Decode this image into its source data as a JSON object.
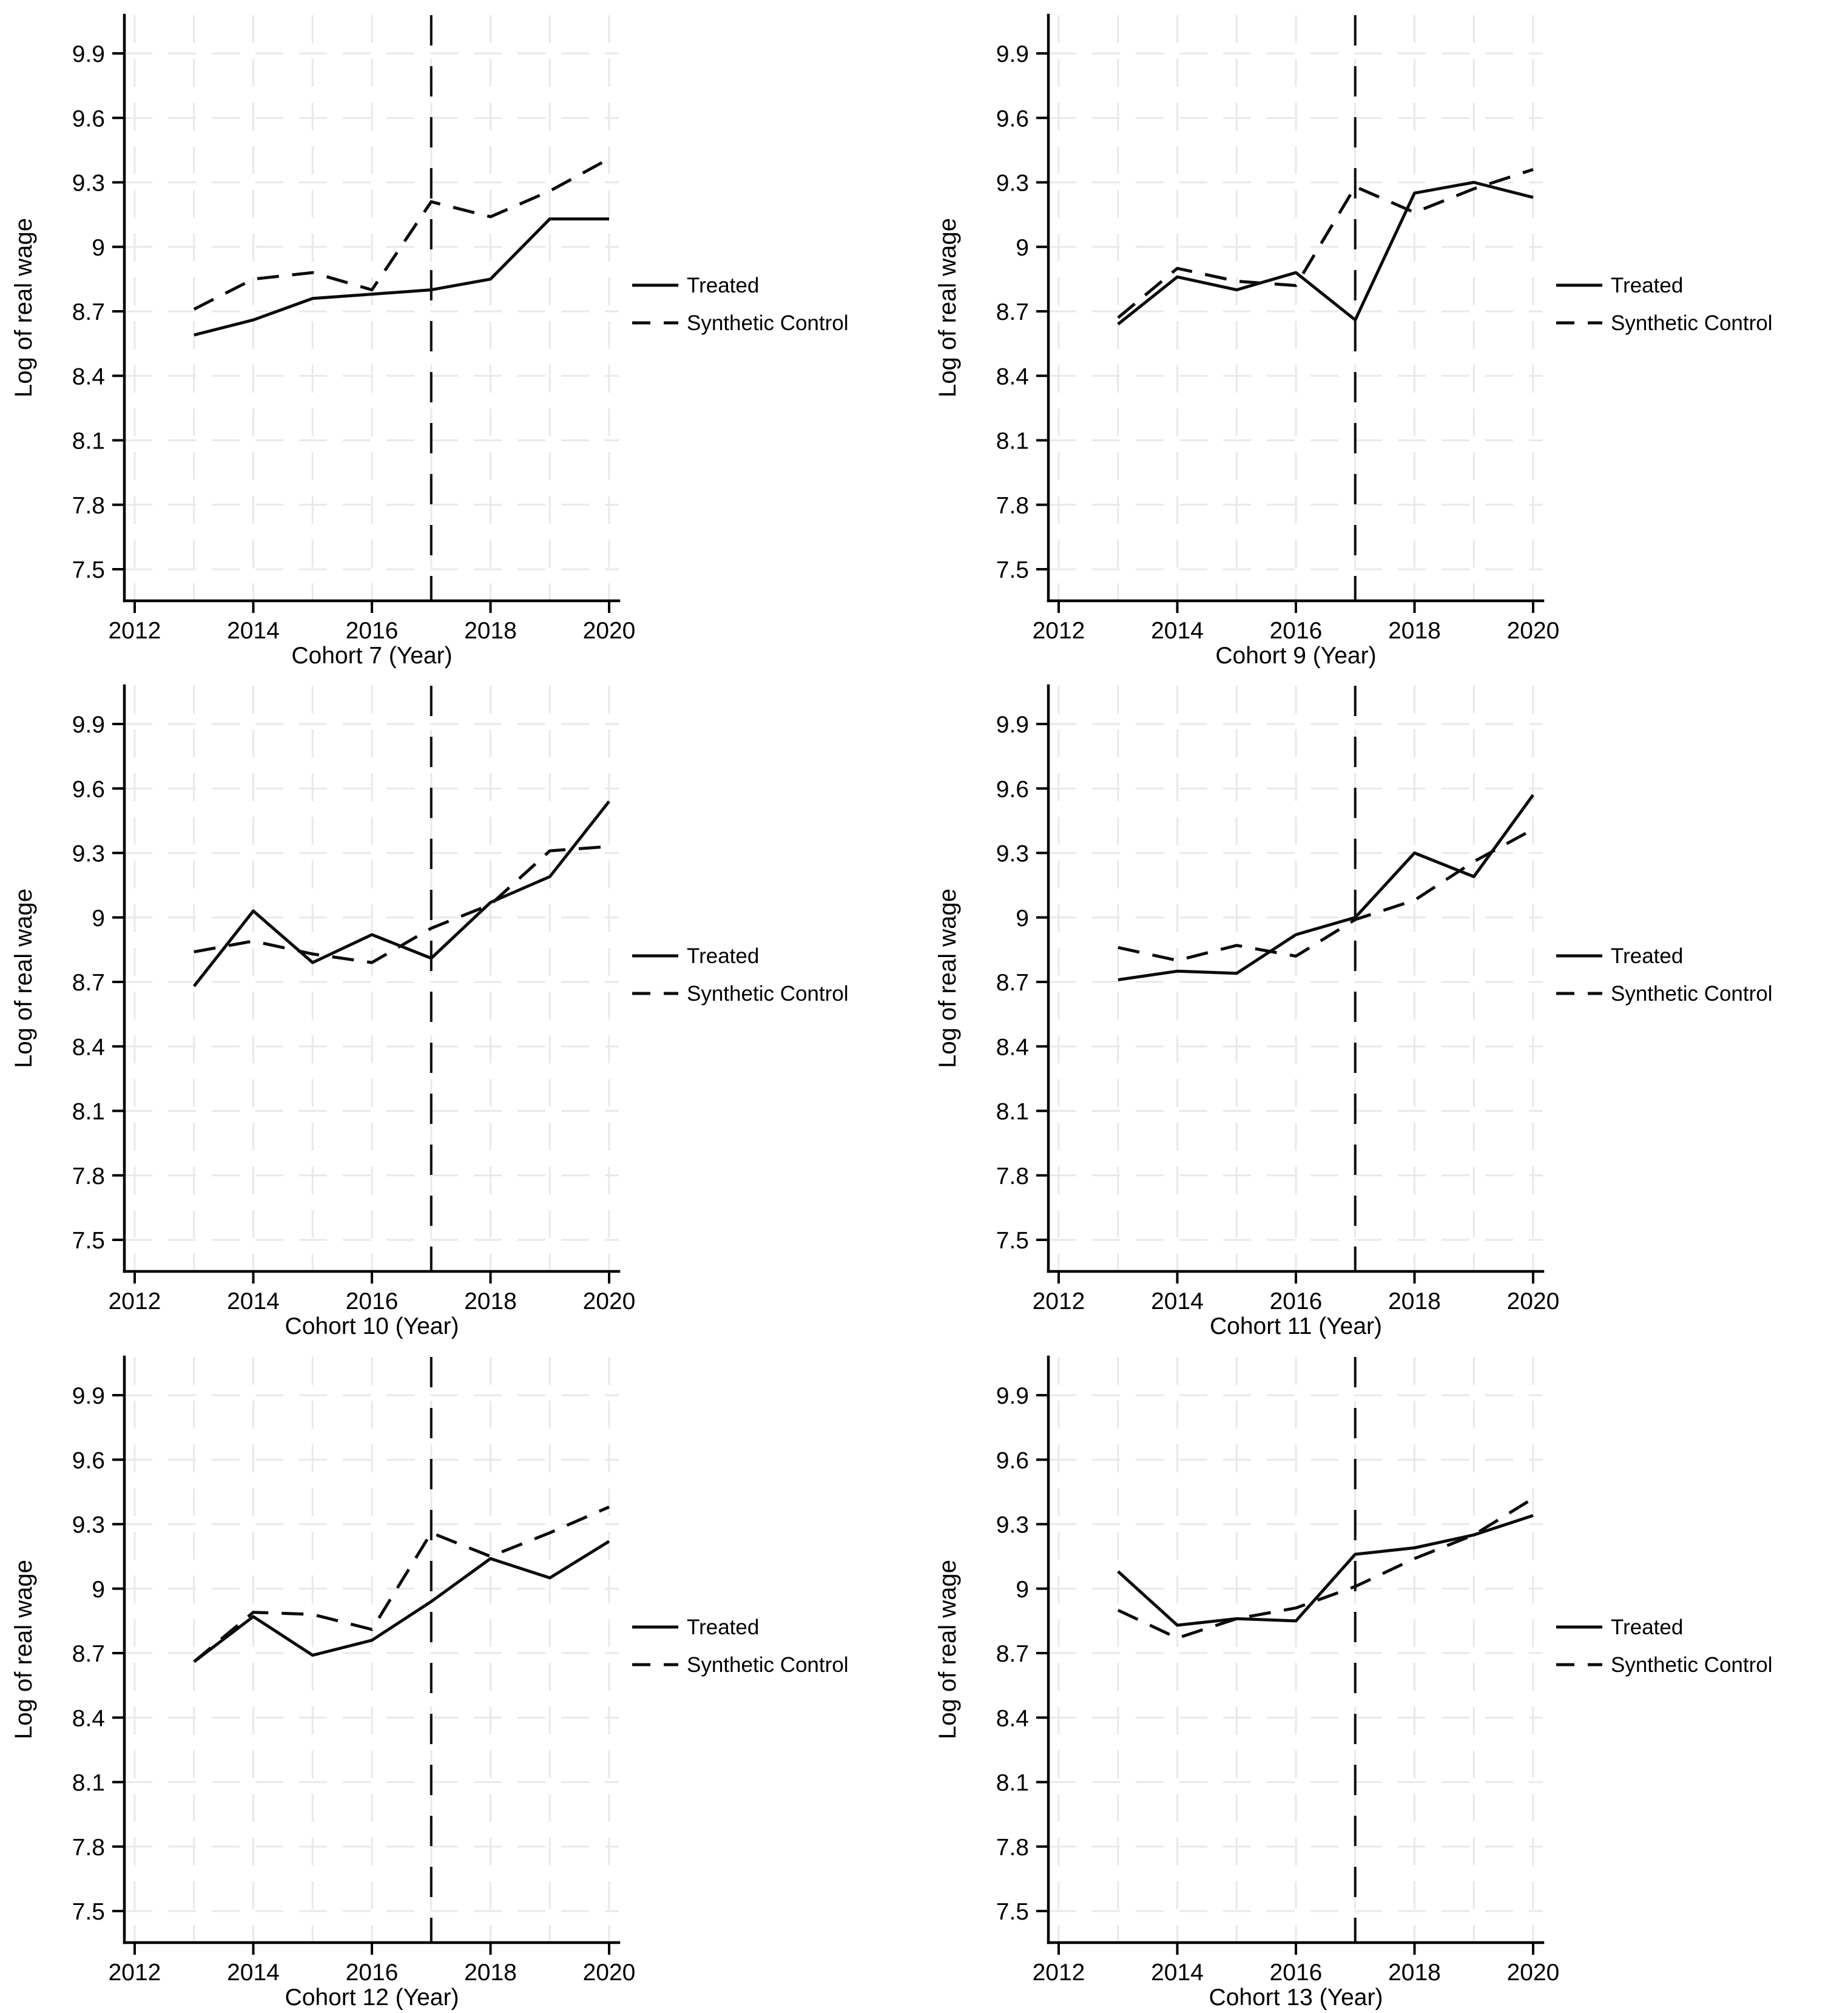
{
  "figure": {
    "background_color": "#ffffff",
    "line_color": "#0b0b0b",
    "grid_color": "#e9e9e9",
    "ylabel": "Log of real wage",
    "legend": [
      "Treated",
      "Synthetic Control"
    ]
  },
  "chart_data": [
    {
      "type": "line",
      "title": "",
      "xlabel": "Cohort 7 (Year)",
      "ylabel": "Log of real wage",
      "x": [
        2013,
        2014,
        2015,
        2016,
        2017,
        2018,
        2019,
        2020
      ],
      "xticks": [
        2012,
        2014,
        2016,
        2018,
        2020
      ],
      "yticks": [
        7.5,
        7.8,
        8.1,
        8.4,
        8.7,
        9,
        9.3,
        9.6,
        9.9
      ],
      "ytick_labels": [
        "7.5",
        "7.8",
        "8.1",
        "8.4",
        "8.7",
        "9",
        "9.3",
        "9.6",
        "9.9"
      ],
      "xlim": [
        2011.8,
        2020.2
      ],
      "ylim": [
        7.35,
        10.08
      ],
      "grid": true,
      "vline_x": 2017,
      "legend_position": "right",
      "series": [
        {
          "name": "Treated",
          "style": "solid",
          "values": [
            8.59,
            8.66,
            8.76,
            8.78,
            8.8,
            8.85,
            9.13,
            9.13
          ]
        },
        {
          "name": "Synthetic Control",
          "style": "dashed",
          "values": [
            8.71,
            8.85,
            8.88,
            8.8,
            9.21,
            9.14,
            9.26,
            9.41
          ]
        }
      ]
    },
    {
      "type": "line",
      "title": "",
      "xlabel": "Cohort 9 (Year)",
      "ylabel": "Log of real wage",
      "x": [
        2013,
        2014,
        2015,
        2016,
        2017,
        2018,
        2019,
        2020
      ],
      "xticks": [
        2012,
        2014,
        2016,
        2018,
        2020
      ],
      "yticks": [
        7.5,
        7.8,
        8.1,
        8.4,
        8.7,
        9,
        9.3,
        9.6,
        9.9
      ],
      "ytick_labels": [
        "7.5",
        "7.8",
        "8.1",
        "8.4",
        "8.7",
        "9",
        "9.3",
        "9.6",
        "9.9"
      ],
      "xlim": [
        2011.8,
        2020.2
      ],
      "ylim": [
        7.35,
        10.08
      ],
      "grid": true,
      "vline_x": 2017,
      "legend_position": "right",
      "series": [
        {
          "name": "Treated",
          "style": "solid",
          "values": [
            8.64,
            8.86,
            8.8,
            8.88,
            8.66,
            9.25,
            9.3,
            9.23
          ]
        },
        {
          "name": "Synthetic Control",
          "style": "dashed",
          "values": [
            8.67,
            8.9,
            8.84,
            8.82,
            9.28,
            9.16,
            9.27,
            9.36
          ]
        }
      ]
    },
    {
      "type": "line",
      "title": "",
      "xlabel": "Cohort 10 (Year)",
      "ylabel": "Log of real wage",
      "x": [
        2013,
        2014,
        2015,
        2016,
        2017,
        2018,
        2019,
        2020
      ],
      "xticks": [
        2012,
        2014,
        2016,
        2018,
        2020
      ],
      "yticks": [
        7.5,
        7.8,
        8.1,
        8.4,
        8.7,
        9,
        9.3,
        9.6,
        9.9
      ],
      "ytick_labels": [
        "7.5",
        "7.8",
        "8.1",
        "8.4",
        "8.7",
        "9",
        "9.3",
        "9.6",
        "9.9"
      ],
      "xlim": [
        2011.8,
        2020.2
      ],
      "ylim": [
        7.35,
        10.08
      ],
      "grid": true,
      "vline_x": 2017,
      "legend_position": "right",
      "series": [
        {
          "name": "Treated",
          "style": "solid",
          "values": [
            8.68,
            9.03,
            8.79,
            8.92,
            8.81,
            9.07,
            9.19,
            9.54
          ]
        },
        {
          "name": "Synthetic Control",
          "style": "dashed",
          "values": [
            8.84,
            8.89,
            8.83,
            8.79,
            8.95,
            9.06,
            9.31,
            9.33
          ]
        }
      ]
    },
    {
      "type": "line",
      "title": "",
      "xlabel": "Cohort 11 (Year)",
      "ylabel": "Log of real wage",
      "x": [
        2013,
        2014,
        2015,
        2016,
        2017,
        2018,
        2019,
        2020
      ],
      "xticks": [
        2012,
        2014,
        2016,
        2018,
        2020
      ],
      "yticks": [
        7.5,
        7.8,
        8.1,
        8.4,
        8.7,
        9,
        9.3,
        9.6,
        9.9
      ],
      "ytick_labels": [
        "7.5",
        "7.8",
        "8.1",
        "8.4",
        "8.7",
        "9",
        "9.3",
        "9.6",
        "9.9"
      ],
      "xlim": [
        2011.8,
        2020.2
      ],
      "ylim": [
        7.35,
        10.08
      ],
      "grid": true,
      "vline_x": 2017,
      "legend_position": "right",
      "series": [
        {
          "name": "Treated",
          "style": "solid",
          "values": [
            8.71,
            8.75,
            8.74,
            8.92,
            9.0,
            9.3,
            9.19,
            9.57
          ]
        },
        {
          "name": "Synthetic Control",
          "style": "dashed",
          "values": [
            8.86,
            8.8,
            8.87,
            8.82,
            8.99,
            9.08,
            9.26,
            9.41
          ]
        }
      ]
    },
    {
      "type": "line",
      "title": "",
      "xlabel": "Cohort 12 (Year)",
      "ylabel": "Log of real wage",
      "x": [
        2013,
        2014,
        2015,
        2016,
        2017,
        2018,
        2019,
        2020
      ],
      "xticks": [
        2012,
        2014,
        2016,
        2018,
        2020
      ],
      "yticks": [
        7.5,
        7.8,
        8.1,
        8.4,
        8.7,
        9,
        9.3,
        9.6,
        9.9
      ],
      "ytick_labels": [
        "7.5",
        "7.8",
        "8.1",
        "8.4",
        "8.7",
        "9",
        "9.3",
        "9.6",
        "9.9"
      ],
      "xlim": [
        2011.8,
        2020.2
      ],
      "ylim": [
        7.35,
        10.08
      ],
      "grid": true,
      "vline_x": 2017,
      "legend_position": "right",
      "series": [
        {
          "name": "Treated",
          "style": "solid",
          "values": [
            8.66,
            8.87,
            8.69,
            8.76,
            8.94,
            9.14,
            9.05,
            9.22
          ]
        },
        {
          "name": "Synthetic Control",
          "style": "dashed",
          "values": [
            8.66,
            8.89,
            8.88,
            8.81,
            9.26,
            9.15,
            9.26,
            9.38
          ]
        }
      ]
    },
    {
      "type": "line",
      "title": "",
      "xlabel": "Cohort 13 (Year)",
      "ylabel": "Log of real wage",
      "x": [
        2013,
        2014,
        2015,
        2016,
        2017,
        2018,
        2019,
        2020
      ],
      "xticks": [
        2012,
        2014,
        2016,
        2018,
        2020
      ],
      "yticks": [
        7.5,
        7.8,
        8.1,
        8.4,
        8.7,
        9,
        9.3,
        9.6,
        9.9
      ],
      "ytick_labels": [
        "7.5",
        "7.8",
        "8.1",
        "8.4",
        "8.7",
        "9",
        "9.3",
        "9.6",
        "9.9"
      ],
      "xlim": [
        2011.8,
        2020.2
      ],
      "ylim": [
        7.35,
        10.08
      ],
      "grid": true,
      "vline_x": 2017,
      "legend_position": "right",
      "series": [
        {
          "name": "Treated",
          "style": "solid",
          "values": [
            9.08,
            8.83,
            8.86,
            8.85,
            9.16,
            9.19,
            9.25,
            9.34
          ]
        },
        {
          "name": "Synthetic Control",
          "style": "dashed",
          "values": [
            8.9,
            8.77,
            8.86,
            8.91,
            9.01,
            9.14,
            9.25,
            9.42
          ]
        }
      ]
    }
  ]
}
